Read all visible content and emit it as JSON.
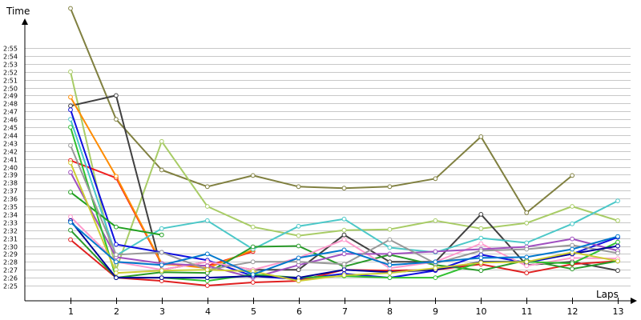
{
  "chart_data": {
    "type": "line",
    "xlabel": "Laps",
    "ylabel": "Time",
    "x": [
      1,
      2,
      3,
      4,
      5,
      6,
      7,
      8,
      9,
      10,
      11,
      12,
      13
    ],
    "x_tick_labels": [
      "1",
      "2",
      "3",
      "4",
      "5",
      "6",
      "7",
      "8",
      "9",
      "10",
      "11",
      "12",
      "13"
    ],
    "y_tick_labels": [
      "2:25",
      "2:26",
      "2:27",
      "2:28",
      "2:29",
      "2:30",
      "2:31",
      "2:32",
      "2:33",
      "2:34",
      "2:35",
      "2:36",
      "2:37",
      "2:38",
      "2:39",
      "2:40",
      "2:41",
      "2:42",
      "2:43",
      "2:44",
      "2:45",
      "2:46",
      "2:47",
      "2:48",
      "2:49",
      "2:50",
      "2:51",
      "2:52",
      "2:53",
      "2:54",
      "2:55"
    ],
    "ylim_seconds": [
      144,
      175
    ],
    "grid": true,
    "series": [
      {
        "color": "#808040",
        "values": [
          "3:00",
          "2:46",
          "2:39.6",
          "2:37.5",
          "2:38.9",
          "2:37.5",
          "2:37.3",
          "2:37.5",
          "2:38.5",
          "2:43.8",
          "2:34.2",
          "2:38.9",
          null
        ]
      },
      {
        "color": "#a8cc66",
        "values": [
          "2:52",
          "2:27",
          "2:43.2",
          "2:35",
          "2:32.4",
          "2:31.3",
          "2:32",
          "2:32.1",
          "2:33.2",
          "2:32.2",
          "2:32.9",
          "2:35",
          "2:33.2"
        ]
      },
      {
        "color": "#404040",
        "values": [
          "2:47.7",
          "2:49",
          "2:27",
          "2:28",
          "2:27",
          "2:27",
          "2:31.4",
          "2:28",
          "2:28",
          "2:34",
          "2:27.6",
          "2:28",
          "2:26.9"
        ]
      },
      {
        "color": "#f02020",
        "values": [
          "2:40.8",
          "2:38.6",
          "2:27.7",
          "2:27.5",
          "2:29.3",
          null,
          null,
          null,
          null,
          null,
          null,
          null,
          null
        ]
      },
      {
        "color": "#ff8c00",
        "values": [
          "2:48.8",
          "2:38.8",
          "2:27.8",
          "2:27.2",
          "2:29.5",
          null,
          null,
          null,
          null,
          null,
          null,
          null,
          null
        ]
      },
      {
        "color": "#4cc8c8",
        "values": [
          "2:46",
          "2:28.8",
          "2:32.2",
          "2:33.2",
          "2:29.6",
          "2:32.5",
          "2:33.4",
          "2:29.8",
          "2:29.2",
          "2:31",
          "2:30.4",
          "2:32.8",
          "2:35.7"
        ]
      },
      {
        "color": "#1010e0",
        "values": [
          "2:47.2",
          "2:30.2",
          "2:29.2",
          "2:28.2",
          "2:26.2",
          "2:25.8",
          "2:26.5",
          "2:26",
          "2:26.9",
          "2:28.9",
          "2:27.9",
          "2:29",
          "2:31.1"
        ]
      },
      {
        "color": "#e02020",
        "values": [
          "2:30.8",
          "2:26",
          "2:25.6",
          "2:25",
          "2:25.4",
          "2:25.6",
          "2:27",
          "2:26.9",
          "2:27",
          "2:27.7",
          "2:26.6",
          "2:27.7",
          "2:28.1"
        ]
      },
      {
        "color": "#20a020",
        "values": [
          "2:36.8",
          "2:32.4",
          "2:31.4",
          null,
          null,
          null,
          null,
          null,
          null,
          null,
          null,
          null,
          null
        ]
      },
      {
        "color": "#2a9a2a",
        "values": [
          "2:32",
          "2:26",
          "2:26.7",
          "2:26.6",
          "2:29.9",
          "2:30",
          "2:27.4",
          "2:28.9",
          "2:27.6",
          "2:26.9",
          "2:28.2",
          "2:27.1",
          "2:28.1"
        ]
      },
      {
        "color": "#ff99cc",
        "values": [
          "2:33.7",
          "2:28",
          "2:27",
          "2:28",
          "2:27",
          "2:28.5",
          "2:30.8",
          "2:27.2",
          "2:28",
          "2:30.3",
          "2:27.5",
          "2:28.5",
          "2:28.4"
        ]
      },
      {
        "color": "#a050c0",
        "values": [
          "2:39.3",
          "2:28.6",
          "2:27.8",
          "2:27.5",
          "2:26",
          "2:27.6",
          "2:29",
          "2:29",
          "2:29.3",
          "2:29.6",
          "2:29.9",
          "2:30.9",
          "2:29.4"
        ]
      },
      {
        "color": "#30c030",
        "values": [
          "2:45",
          "2:26",
          "2:26",
          "2:25.6",
          "2:26.4",
          "2:26",
          "2:26.2",
          "2:26",
          "2:26",
          "2:28",
          "2:28",
          "2:27.8",
          "2:30.5"
        ]
      },
      {
        "color": "#999999",
        "values": [
          "2:42.7",
          "2:28.9",
          "2:29.2",
          "2:27",
          "2:28",
          "2:28",
          "2:27.7",
          "2:30.8",
          "2:27.8",
          "2:29.4",
          "2:29.6",
          "2:30.1",
          "2:29.1"
        ]
      },
      {
        "color": "#000099",
        "values": [
          "2:33.2",
          "2:26",
          "2:26",
          "2:26",
          "2:26.2",
          "2:26",
          "2:27",
          "2:26.7",
          "2:27",
          "2:28",
          "2:28",
          "2:29",
          "2:30"
        ]
      },
      {
        "color": "#cccc33",
        "values": [
          "2:40.5",
          "2:26.6",
          "2:26.9",
          "2:27",
          "2:26.8",
          "2:25.6",
          "2:26.3",
          "2:26.6",
          "2:27.2",
          "2:27.9",
          "2:28",
          "2:29.2",
          "2:28.1"
        ]
      },
      {
        "color": "#0077cc",
        "values": [
          "2:33",
          "2:28",
          "2:27.6",
          "2:29",
          "2:26.4",
          "2:28.5",
          "2:29.5",
          "2:27.6",
          "2:28",
          "2:28.5",
          "2:28.6",
          "2:29.6",
          "2:31.2"
        ]
      }
    ]
  }
}
